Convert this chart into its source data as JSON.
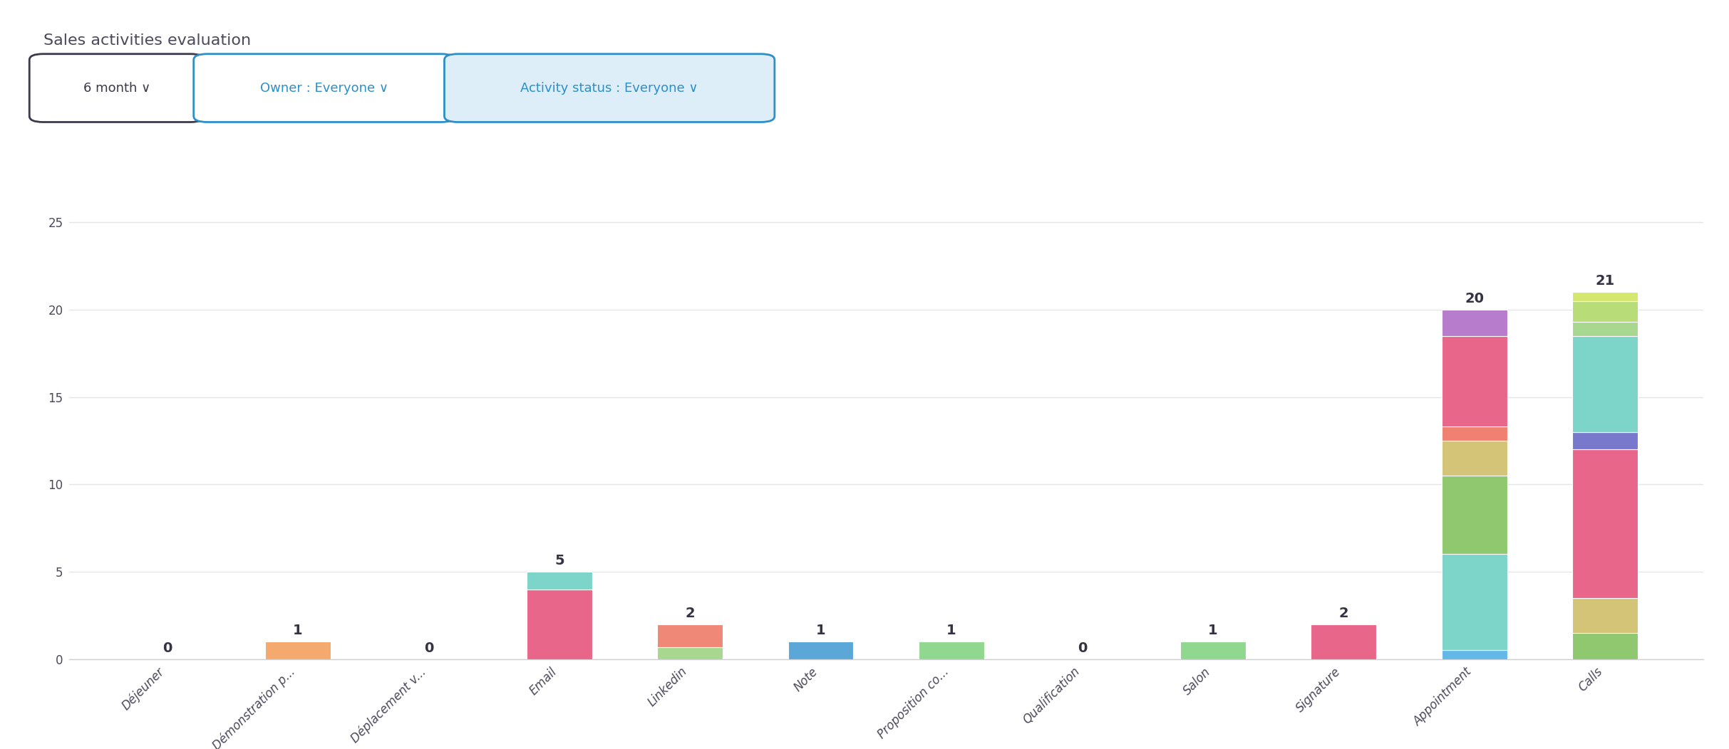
{
  "title": "Sales activities evaluation",
  "categories": [
    "Déjeuner",
    "Démonstration p...",
    "Déplacement v...",
    "Email",
    "Linkedin",
    "Note",
    "Proposition co...",
    "Qualification",
    "Salon",
    "Signature",
    "Appointment",
    "Calls"
  ],
  "bar_totals": [
    0,
    1,
    0,
    5,
    2,
    1,
    1,
    0,
    1,
    2,
    20,
    21
  ],
  "ylim": [
    0,
    27
  ],
  "yticks": [
    0,
    5,
    10,
    15,
    20,
    25
  ],
  "background_color": "#ffffff",
  "grid_color": "#e5e5e5",
  "axis_color": "#d0d0d0",
  "text_color": "#4a4a5a",
  "label_color": "#333344",
  "btn1_text": "6 month ∨",
  "btn1_fg": "#3a3a4a",
  "btn1_bg": "#ffffff",
  "btn1_edge": "#3a3a4a",
  "btn2_text": "Owner : Everyone ∨",
  "btn2_fg": "#2d8fc8",
  "btn2_bg": "#ffffff",
  "btn2_edge": "#2d8fc8",
  "btn3_text": "Activity status : Everyone ∨",
  "btn3_fg": "#2d8fc8",
  "btn3_bg": "#ddeef8",
  "btn3_edge": "#2d8fc8",
  "stacks": [
    [],
    [
      {
        "color": "#f4a96e",
        "value": 1.0
      }
    ],
    [],
    [
      {
        "color": "#e8668a",
        "value": 4.0
      },
      {
        "color": "#7dd4c8",
        "value": 1.0
      }
    ],
    [
      {
        "color": "#a8d890",
        "value": 0.7
      },
      {
        "color": "#f08878",
        "value": 1.3
      }
    ],
    [
      {
        "color": "#5ba8d8",
        "value": 1.0
      }
    ],
    [
      {
        "color": "#90d890",
        "value": 1.0
      }
    ],
    [],
    [
      {
        "color": "#90d890",
        "value": 1.0
      }
    ],
    [
      {
        "color": "#e8668a",
        "value": 2.0
      }
    ],
    [
      {
        "color": "#64b8e8",
        "value": 0.5
      },
      {
        "color": "#7dd4c8",
        "value": 5.5
      },
      {
        "color": "#90c870",
        "value": 4.5
      },
      {
        "color": "#d4c478",
        "value": 2.0
      },
      {
        "color": "#f08070",
        "value": 0.8
      },
      {
        "color": "#e8668a",
        "value": 5.2
      },
      {
        "color": "#b87ccc",
        "value": 1.5
      }
    ],
    [
      {
        "color": "#90c870",
        "value": 1.5
      },
      {
        "color": "#d4c478",
        "value": 2.0
      },
      {
        "color": "#e8668a",
        "value": 8.5
      },
      {
        "color": "#7878cc",
        "value": 1.0
      },
      {
        "color": "#7dd4c8",
        "value": 5.5
      },
      {
        "color": "#a8d890",
        "value": 0.8
      },
      {
        "color": "#b8dc78",
        "value": 1.2
      },
      {
        "color": "#d4e870",
        "value": 0.5
      }
    ]
  ]
}
